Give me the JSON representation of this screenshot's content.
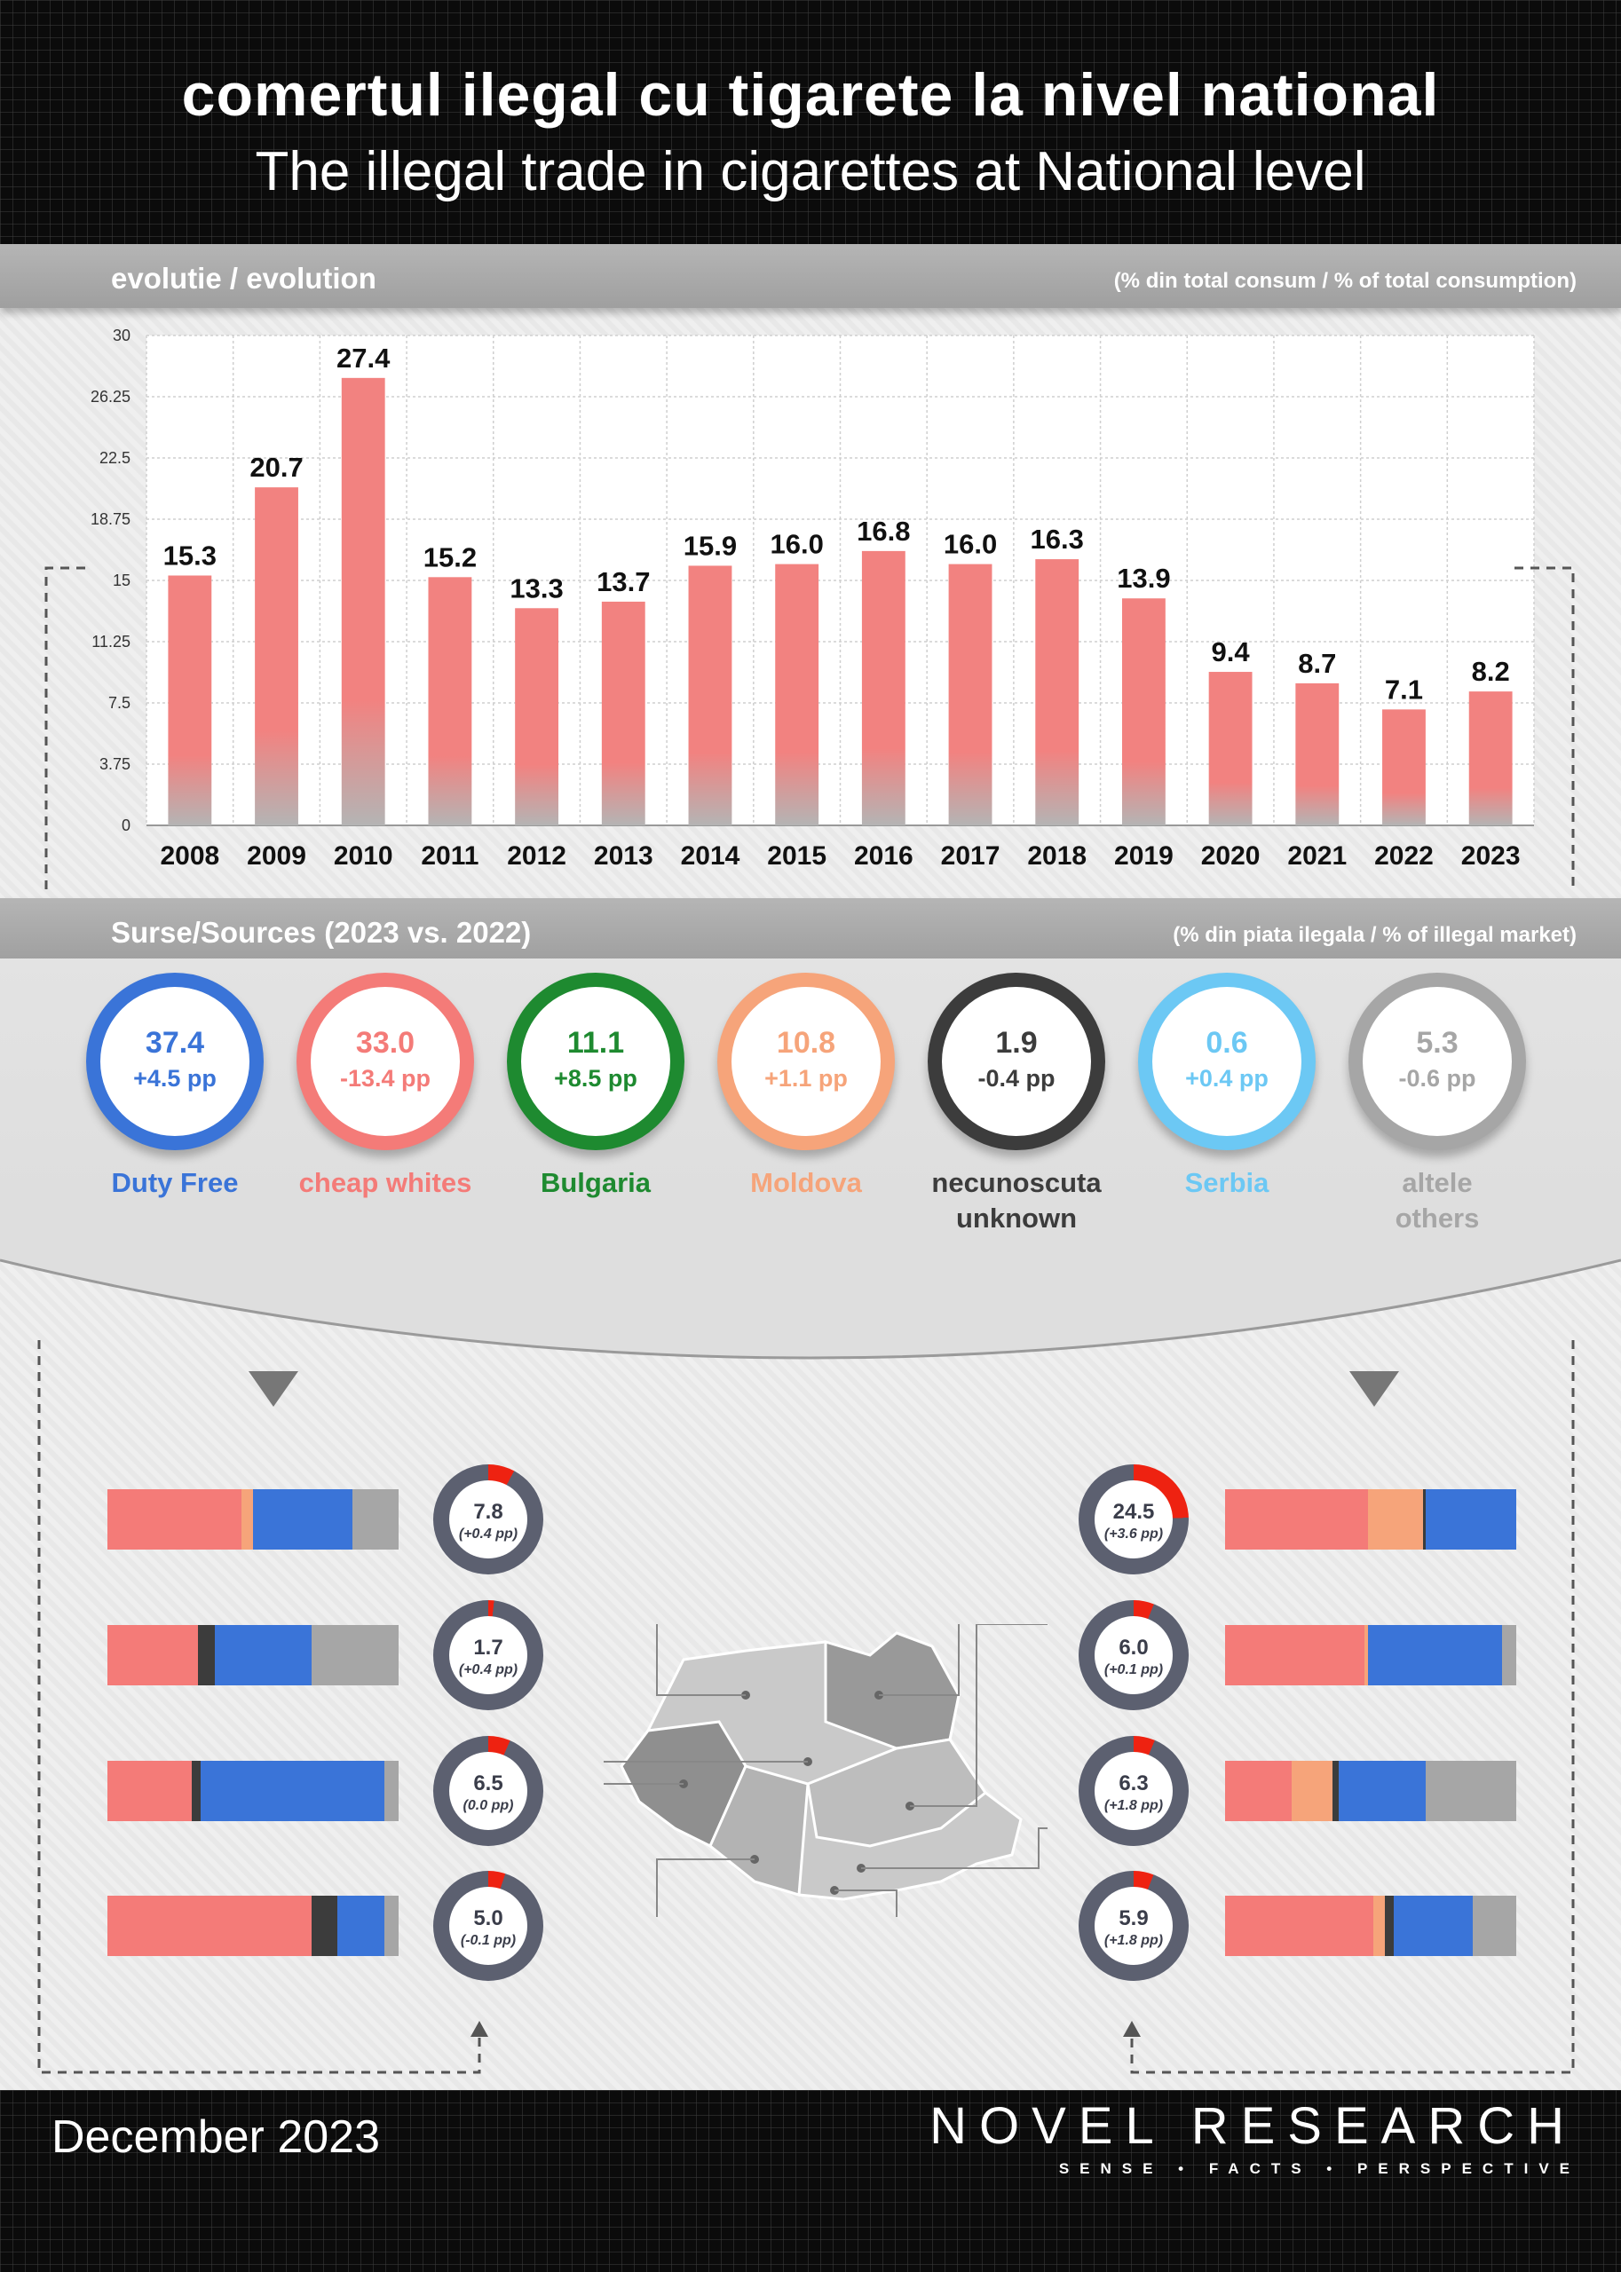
{
  "header": {
    "title_ro": "comertul ilegal cu tigarete la nivel national",
    "title_en": "The illegal trade in cigarettes at National level"
  },
  "evolution": {
    "band_title": "evolutie / evolution",
    "band_note": "(% din total consum / % of total consumption)"
  },
  "chart_data": {
    "type": "bar",
    "title": "",
    "categories": [
      "2008",
      "2009",
      "2010",
      "2011",
      "2012",
      "2013",
      "2014",
      "2015",
      "2016",
      "2017",
      "2018",
      "2019",
      "2020",
      "2021",
      "2022",
      "2023"
    ],
    "values": [
      15.3,
      20.7,
      27.4,
      15.2,
      13.3,
      13.7,
      15.9,
      16.0,
      16.8,
      16.0,
      16.3,
      13.9,
      9.4,
      8.7,
      7.1,
      8.2
    ],
    "value_labels": [
      "15.3",
      "20.7",
      "27.4",
      "15.2",
      "13.3",
      "13.7",
      "15.9",
      "16.0",
      "16.8",
      "16.0",
      "16.3",
      "13.9",
      "9.4",
      "8.7",
      "7.1",
      "8.2"
    ],
    "y_ticks": [
      "0",
      "3.75",
      "7.5",
      "11.25",
      "15",
      "18.75",
      "22.5",
      "26.25",
      "30"
    ],
    "ylim": [
      0,
      30
    ],
    "grid": true,
    "bar_color_top": "#f28280",
    "bar_color_bottom": "#b4b4b4"
  },
  "sources": {
    "band_title": "Surse/Sources (2023 vs. 2022)",
    "band_note": "(% din piata ilegala / % of illegal market)",
    "items": [
      {
        "value": "37.4",
        "change": "+4.5 pp",
        "label1": "Duty Free",
        "label2": "",
        "color": "#3a74d8"
      },
      {
        "value": "33.0",
        "change": "-13.4 pp",
        "label1": "cheap whites",
        "label2": "",
        "color": "#f47b78"
      },
      {
        "value": "11.1",
        "change": "+8.5 pp",
        "label1": "Bulgaria",
        "label2": "",
        "color": "#1e8a30"
      },
      {
        "value": "10.8",
        "change": "+1.1 pp",
        "label1": "Moldova",
        "label2": "",
        "color": "#f6a47a"
      },
      {
        "value": "1.9",
        "change": "-0.4 pp",
        "label1": "necunoscuta",
        "label2": "unknown",
        "color": "#3c3c3c"
      },
      {
        "value": "0.6",
        "change": "+0.4 pp",
        "label1": "Serbia",
        "label2": "",
        "color": "#6cc8f4"
      },
      {
        "value": "5.3",
        "change": "-0.6 pp",
        "label1": "altele",
        "label2": "others",
        "color": "#a6a6a6"
      }
    ]
  },
  "regions": {
    "left": [
      {
        "value": "7.8",
        "change": "(+0.4 pp)",
        "share": 0.078,
        "segments": [
          {
            "c": "#f47b78",
            "w": 0.46
          },
          {
            "c": "#f6a47a",
            "w": 0.04
          },
          {
            "c": "#3a74d8",
            "w": 0.34
          },
          {
            "c": "#a6a6a6",
            "w": 0.16
          }
        ]
      },
      {
        "value": "1.7",
        "change": "(+0.4 pp)",
        "share": 0.017,
        "segments": [
          {
            "c": "#f47b78",
            "w": 0.31
          },
          {
            "c": "#3c3c3c",
            "w": 0.06
          },
          {
            "c": "#3a74d8",
            "w": 0.33
          },
          {
            "c": "#a6a6a6",
            "w": 0.3
          }
        ]
      },
      {
        "value": "6.5",
        "change": "(0.0 pp)",
        "share": 0.065,
        "segments": [
          {
            "c": "#f47b78",
            "w": 0.29
          },
          {
            "c": "#3c3c3c",
            "w": 0.03
          },
          {
            "c": "#3a74d8",
            "w": 0.63
          },
          {
            "c": "#a6a6a6",
            "w": 0.05
          }
        ]
      },
      {
        "value": "5.0",
        "change": "(-0.1 pp)",
        "share": 0.05,
        "segments": [
          {
            "c": "#f47b78",
            "w": 0.7
          },
          {
            "c": "#3c3c3c",
            "w": 0.09
          },
          {
            "c": "#3a74d8",
            "w": 0.16
          },
          {
            "c": "#a6a6a6",
            "w": 0.05
          }
        ]
      }
    ],
    "right": [
      {
        "value": "24.5",
        "change": "(+3.6 pp)",
        "share": 0.245,
        "segments": [
          {
            "c": "#f47b78",
            "w": 0.49
          },
          {
            "c": "#f6a47a",
            "w": 0.19
          },
          {
            "c": "#3c3c3c",
            "w": 0.01
          },
          {
            "c": "#3a74d8",
            "w": 0.31
          }
        ]
      },
      {
        "value": "6.0",
        "change": "(+0.1 pp)",
        "share": 0.06,
        "segments": [
          {
            "c": "#f47b78",
            "w": 0.48
          },
          {
            "c": "#f6a47a",
            "w": 0.01
          },
          {
            "c": "#3a74d8",
            "w": 0.46
          },
          {
            "c": "#a6a6a6",
            "w": 0.05
          }
        ]
      },
      {
        "value": "6.3",
        "change": "(+1.8 pp)",
        "share": 0.063,
        "segments": [
          {
            "c": "#f47b78",
            "w": 0.23
          },
          {
            "c": "#f6a47a",
            "w": 0.14
          },
          {
            "c": "#3c3c3c",
            "w": 0.02
          },
          {
            "c": "#3a74d8",
            "w": 0.3
          },
          {
            "c": "#a6a6a6",
            "w": 0.31
          }
        ]
      },
      {
        "value": "5.9",
        "change": "(+1.8 pp)",
        "share": 0.059,
        "segments": [
          {
            "c": "#f47b78",
            "w": 0.51
          },
          {
            "c": "#f6a47a",
            "w": 0.04
          },
          {
            "c": "#3c3c3c",
            "w": 0.03
          },
          {
            "c": "#3a74d8",
            "w": 0.27
          },
          {
            "c": "#a6a6a6",
            "w": 0.15
          }
        ]
      }
    ]
  },
  "footer": {
    "date": "December 2023",
    "brand": "NOVEL RESEARCH",
    "tagline": "SENSE • FACTS • PERSPECTIVE"
  }
}
